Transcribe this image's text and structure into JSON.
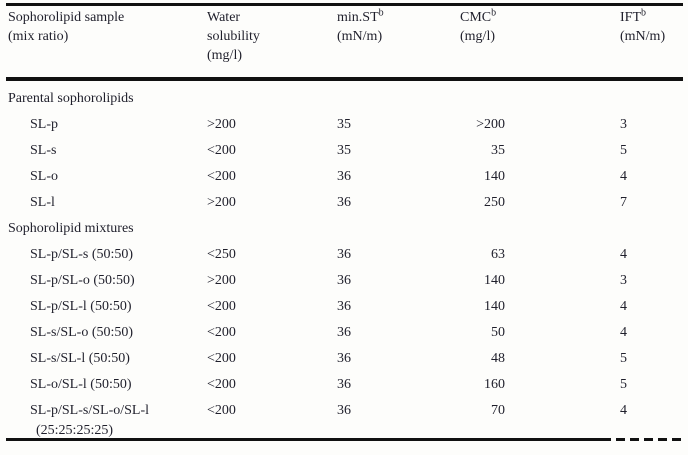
{
  "table": {
    "header": {
      "col1": {
        "line1": "Sophorolipid sample",
        "line2": "(mix ratio)"
      },
      "col2": {
        "line1": "Water",
        "line2": "solubility",
        "line3": "(mg/l)"
      },
      "col3": {
        "name": "min.ST",
        "sup": "b",
        "unit": "(mN/m)"
      },
      "col4": {
        "name": "CMC",
        "sup": "b",
        "unit": "(mg/l)"
      },
      "col5": {
        "name": "IFT",
        "sup": "b",
        "unit": "(mN/m)"
      }
    },
    "sections": [
      {
        "title": "Parental sophorolipids",
        "rows": [
          {
            "sample": "SL-p",
            "water_solubility": ">200",
            "min_st": "35",
            "cmc": ">200",
            "ift": "3"
          },
          {
            "sample": "SL-s",
            "water_solubility": "<200",
            "min_st": "35",
            "cmc": "35",
            "ift": "5"
          },
          {
            "sample": "SL-o",
            "water_solubility": "<200",
            "min_st": "36",
            "cmc": "140",
            "ift": "4"
          },
          {
            "sample": "SL-l",
            "water_solubility": ">200",
            "min_st": "36",
            "cmc": "250",
            "ift": "7"
          }
        ]
      },
      {
        "title": "Sophorolipid mixtures",
        "rows": [
          {
            "sample": "SL-p/SL-s (50:50)",
            "water_solubility": "<250",
            "min_st": "36",
            "cmc": "63",
            "ift": "4"
          },
          {
            "sample": "SL-p/SL-o (50:50)",
            "water_solubility": ">200",
            "min_st": "36",
            "cmc": "140",
            "ift": "3"
          },
          {
            "sample": "SL-p/SL-l (50:50)",
            "water_solubility": "<200",
            "min_st": "36",
            "cmc": "140",
            "ift": "4"
          },
          {
            "sample": "SL-s/SL-o (50:50)",
            "water_solubility": "<200",
            "min_st": "36",
            "cmc": "50",
            "ift": "4"
          },
          {
            "sample": "SL-s/SL-l (50:50)",
            "water_solubility": "<200",
            "min_st": "36",
            "cmc": "48",
            "ift": "5"
          },
          {
            "sample": "SL-o/SL-l (50:50)",
            "water_solubility": "<200",
            "min_st": "36",
            "cmc": "160",
            "ift": "5"
          },
          {
            "sample": "SL-p/SL-s/SL-o/SL-l",
            "sample_line2": "(25:25:25:25)",
            "water_solubility": "<200",
            "min_st": "36",
            "cmc": "70",
            "ift": "4"
          }
        ]
      }
    ]
  },
  "colors": {
    "text": "#1f1f2b",
    "rule": "#111111",
    "background": "#fdfdfb"
  }
}
